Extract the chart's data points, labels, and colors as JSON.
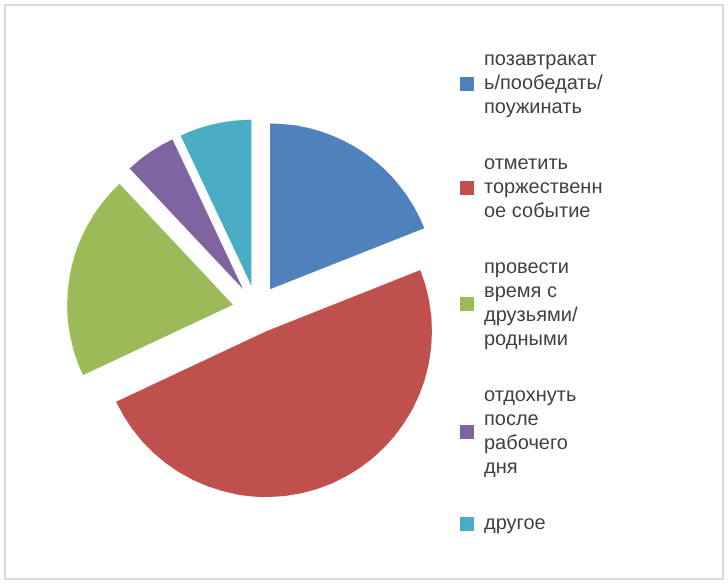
{
  "chart_data": {
    "type": "pie",
    "categories": [
      "позавтракать/пообедать/ поужинать",
      "отметить торжественное событие",
      "провести время с друзьями/родными",
      "отдохнуть после рабочего дня",
      "другое"
    ],
    "values": [
      19,
      49,
      20,
      5,
      7
    ],
    "colors": [
      "#4f81bd",
      "#c0504d",
      "#9bbb59",
      "#8064a2",
      "#4bacc6"
    ],
    "legend": "right"
  }
}
